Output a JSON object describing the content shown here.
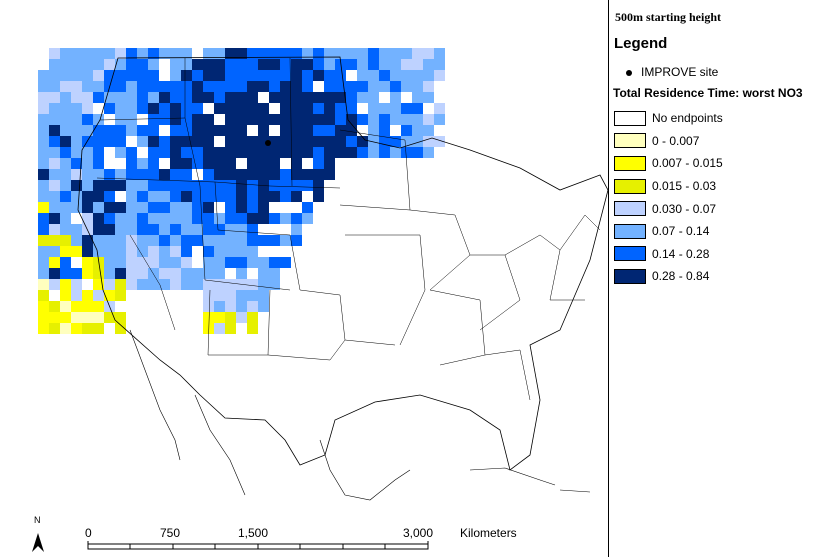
{
  "map_title": "500m starting height",
  "legend": {
    "title": "Legend",
    "site_label": "IMPROVE site",
    "residence_title": "Total Residence Time: worst NO3",
    "bins": [
      {
        "label": "No endpoints",
        "color": "#ffffff"
      },
      {
        "label": "0 - 0.007",
        "color": "#ffffbe"
      },
      {
        "label": "0.007 - 0.015",
        "color": "#ffff00"
      },
      {
        "label": "0.015 - 0.03",
        "color": "#e6f000"
      },
      {
        "label": "0.030 - 0.07",
        "color": "#bed2ff"
      },
      {
        "label": "0.07 - 0.14",
        "color": "#73b2ff"
      },
      {
        "label": "0.14 - 0.28",
        "color": "#0064ff"
      },
      {
        "label": "0.28 - 0.84",
        "color": "#002673"
      }
    ]
  },
  "scale_bar": {
    "labels": [
      "0",
      "750",
      "1,500",
      "3,000"
    ],
    "unit": "Kilometers"
  },
  "north_arrow": {
    "label": "N",
    "icon": "north-arrow-icon"
  }
}
